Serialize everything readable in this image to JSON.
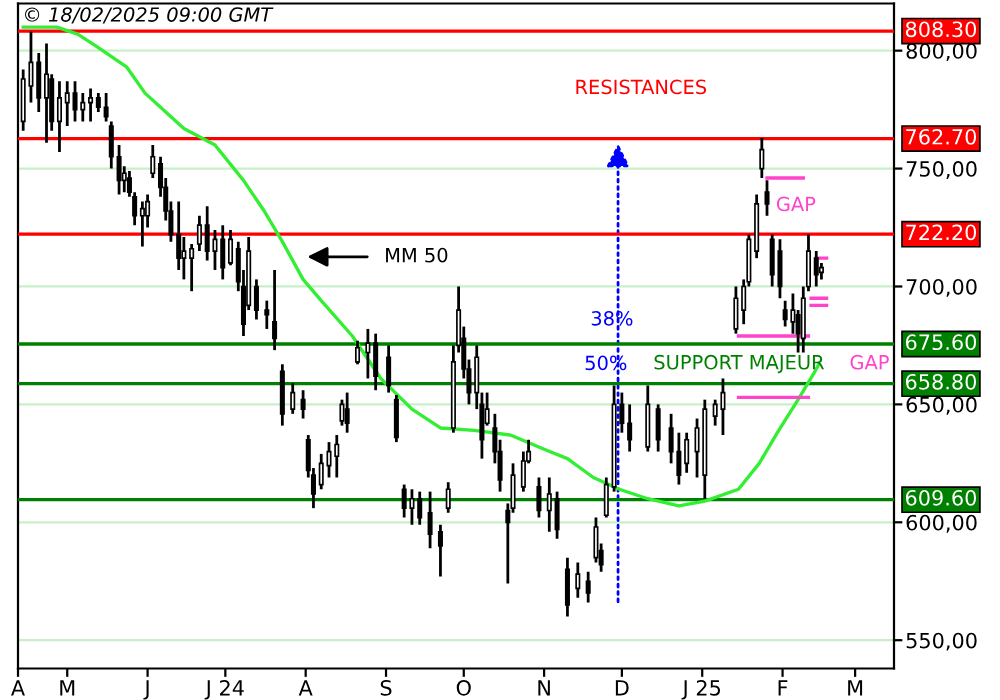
{
  "chart_data": {
    "type": "candlestick",
    "x": [
      "2024-04-14",
      "2024-04-17",
      "2024-04-20",
      "2024-04-23",
      "2024-04-25",
      "2024-04-28",
      "2024-05-01",
      "2024-05-04",
      "2024-05-07",
      "2024-05-10",
      "2024-05-13",
      "2024-05-16",
      "2024-05-18",
      "2024-05-21",
      "2024-05-23",
      "2024-05-25",
      "2024-05-27",
      "2024-05-30",
      "2024-06-01",
      "2024-06-03",
      "2024-06-06",
      "2024-06-08",
      "2024-06-10",
      "2024-06-13",
      "2024-06-15",
      "2024-06-18",
      "2024-06-21",
      "2024-06-24",
      "2024-06-27",
      "2024-06-30",
      "2024-07-03",
      "2024-07-06",
      "2024-07-08",
      "2024-07-10",
      "2024-07-13",
      "2024-07-17",
      "2024-07-20",
      "2024-07-23",
      "2024-07-27",
      "2024-07-31",
      "2024-08-02",
      "2024-08-04",
      "2024-08-07",
      "2024-08-10",
      "2024-08-13",
      "2024-08-15",
      "2024-08-17",
      "2024-08-21",
      "2024-08-25",
      "2024-08-28",
      "2024-09-02",
      "2024-09-05",
      "2024-09-08",
      "2024-09-11",
      "2024-09-14",
      "2024-09-18",
      "2024-09-22",
      "2024-09-25",
      "2024-09-27",
      "2024-09-29",
      "2024-10-01",
      "2024-10-03",
      "2024-10-06",
      "2024-10-08",
      "2024-10-10",
      "2024-10-13",
      "2024-10-15",
      "2024-10-18",
      "2024-10-20",
      "2024-10-24",
      "2024-10-26",
      "2024-10-30",
      "2024-11-03",
      "2024-11-06",
      "2024-11-10",
      "2024-11-14",
      "2024-11-18",
      "2024-11-21",
      "2024-11-23",
      "2024-11-25",
      "2024-11-28",
      "2024-12-01",
      "2024-12-04",
      "2024-12-11",
      "2024-12-15",
      "2024-12-20",
      "2024-12-23",
      "2024-12-26",
      "2024-12-30",
      "2025-01-02",
      "2025-01-06",
      "2025-01-09",
      "2025-01-14",
      "2025-01-17",
      "2025-01-19",
      "2025-01-22",
      "2025-01-24",
      "2025-01-26",
      "2025-01-28",
      "2025-01-31",
      "2025-02-02",
      "2025-02-05",
      "2025-02-07",
      "2025-02-09",
      "2025-02-11",
      "2025-02-14",
      "2025-02-16"
    ],
    "ohlc": [
      [
        770,
        792,
        766,
        788
      ],
      [
        785,
        808,
        778,
        795
      ],
      [
        795,
        799,
        774,
        780
      ],
      [
        780,
        803,
        761,
        790
      ],
      [
        788,
        790,
        766,
        770
      ],
      [
        770,
        787,
        757,
        780
      ],
      [
        778,
        787,
        768,
        782
      ],
      [
        782,
        787,
        770,
        775
      ],
      [
        775,
        782,
        770,
        778
      ],
      [
        778,
        784,
        770,
        780
      ],
      [
        780,
        782,
        774,
        776
      ],
      [
        776,
        782,
        770,
        772
      ],
      [
        768,
        770,
        750,
        755
      ],
      [
        755,
        760,
        739,
        745
      ],
      [
        745,
        751,
        740,
        748
      ],
      [
        746,
        749,
        738,
        740
      ],
      [
        738,
        740,
        726,
        730
      ],
      [
        730,
        736,
        717,
        733
      ],
      [
        730,
        739,
        725,
        736
      ],
      [
        748,
        760,
        746,
        755
      ],
      [
        752,
        755,
        738,
        742
      ],
      [
        742,
        746,
        728,
        732
      ],
      [
        732,
        736,
        719,
        722
      ],
      [
        722,
        736,
        707,
        712
      ],
      [
        712,
        721,
        703,
        715
      ],
      [
        712,
        718,
        698,
        716
      ],
      [
        718,
        730,
        715,
        726
      ],
      [
        726,
        734,
        711,
        715
      ],
      [
        715,
        724,
        707,
        720
      ],
      [
        720,
        726,
        703,
        708
      ],
      [
        710,
        724,
        709,
        720
      ],
      [
        716,
        719,
        698,
        702
      ],
      [
        700,
        707,
        679,
        684
      ],
      [
        692,
        721,
        690,
        715
      ],
      [
        700,
        703,
        686,
        690
      ],
      [
        690,
        694,
        682,
        688
      ],
      [
        685,
        707,
        673,
        678
      ],
      [
        664,
        667,
        641,
        646
      ],
      [
        648,
        659,
        646,
        655
      ],
      [
        652,
        656,
        644,
        648
      ],
      [
        635,
        637,
        619,
        622
      ],
      [
        620,
        623,
        606,
        612
      ],
      [
        616,
        629,
        614,
        625
      ],
      [
        624,
        634,
        619,
        630
      ],
      [
        628,
        637,
        619,
        633
      ],
      [
        643,
        652,
        641,
        650
      ],
      [
        648,
        655,
        638,
        642
      ],
      [
        668,
        677,
        667,
        674
      ],
      [
        672,
        682,
        661,
        676
      ],
      [
        676,
        680,
        656,
        662
      ],
      [
        670,
        675,
        655,
        658
      ],
      [
        652,
        654,
        634,
        636
      ],
      [
        614,
        616,
        602,
        606
      ],
      [
        606,
        614,
        599,
        610
      ],
      [
        610,
        613,
        599,
        602
      ],
      [
        604,
        613,
        589,
        595
      ],
      [
        596,
        599,
        577,
        590
      ],
      [
        606,
        617,
        604,
        614
      ],
      [
        640,
        675,
        638,
        668
      ],
      [
        675,
        700,
        672,
        690
      ],
      [
        678,
        683,
        661,
        665
      ],
      [
        665,
        669,
        650,
        655
      ],
      [
        655,
        675,
        648,
        670
      ],
      [
        650,
        655,
        627,
        635
      ],
      [
        642,
        655,
        641,
        648
      ],
      [
        640,
        646,
        625,
        630
      ],
      [
        630,
        635,
        613,
        618
      ],
      [
        605,
        608,
        574,
        600
      ],
      [
        606,
        625,
        604,
        620
      ],
      [
        615,
        630,
        613,
        626
      ],
      [
        626,
        635,
        625,
        630
      ],
      [
        615,
        619,
        602,
        605
      ],
      [
        605,
        619,
        596,
        612
      ],
      [
        610,
        613,
        593,
        597
      ],
      [
        580,
        585,
        560,
        565
      ],
      [
        572,
        583,
        568,
        578
      ],
      [
        575,
        579,
        566,
        570
      ],
      [
        585,
        602,
        583,
        598
      ],
      [
        588,
        591,
        579,
        582
      ],
      [
        603,
        619,
        602,
        616
      ],
      [
        615,
        658,
        613,
        650
      ],
      [
        650,
        655,
        638,
        642
      ],
      [
        642,
        650,
        630,
        635
      ],
      [
        632,
        658,
        630,
        650
      ],
      [
        648,
        650,
        630,
        635
      ],
      [
        640,
        646,
        625,
        630
      ],
      [
        630,
        638,
        616,
        620
      ],
      [
        625,
        638,
        621,
        635
      ],
      [
        630,
        644,
        619,
        640
      ],
      [
        620,
        652,
        610,
        648
      ],
      [
        645,
        652,
        641,
        650
      ],
      [
        648,
        661,
        637,
        655
      ],
      [
        682,
        700,
        680,
        695
      ],
      [
        690,
        703,
        684,
        700
      ],
      [
        702,
        722,
        700,
        720
      ],
      [
        715,
        739,
        712,
        735
      ],
      [
        750,
        763,
        746,
        758
      ],
      [
        740,
        745,
        730,
        735
      ],
      [
        720,
        722,
        700,
        705
      ],
      [
        715,
        720,
        695,
        700
      ],
      [
        690,
        694,
        683,
        686
      ],
      [
        685,
        697,
        680,
        690
      ],
      [
        688,
        690,
        672,
        680
      ],
      [
        678,
        700,
        672,
        695
      ],
      [
        700,
        722,
        698,
        715
      ],
      [
        712,
        715,
        700,
        705
      ],
      [
        706,
        710,
        703,
        708
      ]
    ],
    "color": "#000000",
    "series": [
      {
        "type": "line",
        "color": "#33ee33",
        "x": [
          "2024-04-14",
          "2024-04-27",
          "2024-05-05",
          "2024-05-12",
          "2024-05-24",
          "2024-05-31",
          "2024-06-08",
          "2024-06-15",
          "2024-06-27",
          "2024-07-08",
          "2024-07-16",
          "2024-07-23",
          "2024-07-31",
          "2024-08-07",
          "2024-08-19",
          "2024-08-30",
          "2024-09-11",
          "2024-09-22",
          "2024-10-05",
          "2024-10-19",
          "2024-11-01",
          "2024-11-10",
          "2024-11-20",
          "2024-11-30",
          "2024-12-11",
          "2024-12-23",
          "2025-01-02",
          "2025-01-15",
          "2025-01-23",
          "2025-01-30",
          "2025-02-07",
          "2025-02-13",
          "2025-02-15"
        ],
        "values": [
          810,
          810,
          807,
          802,
          793,
          782,
          774,
          767,
          760,
          745,
          732,
          719,
          703,
          694,
          679,
          661,
          648,
          640,
          639,
          637,
          631,
          627,
          619,
          614,
          610,
          607,
          609,
          614,
          625,
          638,
          652,
          663,
          667
        ]
      },
      {
        "type": "line",
        "color": "#ff44cc",
        "x": [
          "2025-01-26",
          "2025-02-09"
        ],
        "values": [
          746,
          746
        ]
      },
      {
        "type": "line",
        "color": "#ff44cc",
        "x": [
          "2025-01-15",
          "2025-02-11"
        ],
        "values": [
          679,
          679
        ]
      },
      {
        "type": "line",
        "color": "#ff44cc",
        "x": [
          "2025-01-15",
          "2025-02-11"
        ],
        "values": [
          653,
          653
        ]
      },
      {
        "type": "line",
        "color": "#ff44cc",
        "x": [
          "2025-02-14",
          "2025-02-18"
        ],
        "values": [
          712,
          712
        ]
      },
      {
        "type": "line",
        "color": "#ff44cc",
        "x": [
          "2025-02-12",
          "2025-02-18"
        ],
        "values": [
          692,
          692
        ]
      },
      {
        "type": "line",
        "color": "#ff44cc",
        "x": [
          "2025-02-12",
          "2025-02-18"
        ],
        "values": [
          695,
          695
        ]
      }
    ],
    "ref_lines": [
      {
        "axis": "y",
        "value": 808.3,
        "label": "808.30",
        "color": "#ff0000"
      },
      {
        "axis": "y",
        "value": 762.7,
        "label": "762.70",
        "color": "#ff0000"
      },
      {
        "axis": "y",
        "value": 722.2,
        "label": "722.20",
        "color": "#ff0000"
      },
      {
        "axis": "y",
        "value": 675.6,
        "label": "675.60",
        "color": "#008000"
      },
      {
        "axis": "y",
        "value": 658.8,
        "label": "658.80",
        "color": "#008000"
      },
      {
        "axis": "y",
        "value": 609.6,
        "label": "609.60",
        "color": "#008000"
      }
    ],
    "annotations": [
      "© 18/02/2025 09:00 GMT",
      "RESISTANCES",
      "MM 50",
      "38%",
      "50%",
      "SUPPORT MAJEUR",
      "GAP",
      "GAP"
    ],
    "xlim": [
      "2024-04-12",
      "2025-03-16"
    ],
    "xticks": [
      {
        "value": "2024-04-12",
        "label": "A"
      },
      {
        "value": "2024-05-01",
        "label": "M"
      },
      {
        "value": "2024-06-01",
        "label": "J"
      },
      {
        "value": "2024-07-01",
        "label": "J 24"
      },
      {
        "value": "2024-08-01",
        "label": "A"
      },
      {
        "value": "2024-09-01",
        "label": "S"
      },
      {
        "value": "2024-10-01",
        "label": "O"
      },
      {
        "value": "2024-11-01",
        "label": "N"
      },
      {
        "value": "2024-12-01",
        "label": "D"
      },
      {
        "value": "2025-01-01",
        "label": "J 25"
      },
      {
        "value": "2025-02-01",
        "label": "F"
      },
      {
        "value": "2025-03-01",
        "label": "M"
      }
    ],
    "ylim": [
      538,
      820
    ],
    "yticks": [
      {
        "value": 550,
        "label": "550,00"
      },
      {
        "value": 600,
        "label": "600,00"
      },
      {
        "value": 650,
        "label": "650,00"
      },
      {
        "value": 700,
        "label": "700,00"
      },
      {
        "value": 750,
        "label": "750,00"
      },
      {
        "value": 800,
        "label": "800,00"
      }
    ],
    "grid": "y"
  }
}
